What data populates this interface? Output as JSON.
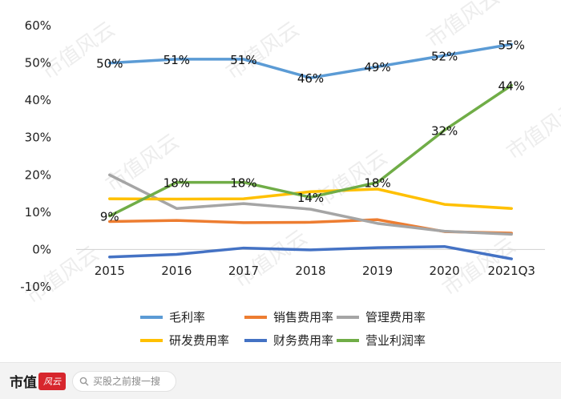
{
  "chart_data": {
    "type": "line",
    "categories": [
      "2015",
      "2016",
      "2017",
      "2018",
      "2019",
      "2020",
      "2021Q3"
    ],
    "ylim": [
      -10,
      60
    ],
    "yticks": [
      "60%",
      "50%",
      "40%",
      "30%",
      "20%",
      "10%",
      "0%",
      "-10%"
    ],
    "ytick_values": [
      60,
      50,
      40,
      30,
      20,
      10,
      0,
      -10
    ],
    "legend_position": "bottom",
    "series": [
      {
        "name": "毛利率",
        "color": "#5B9BD5",
        "values": [
          50,
          51,
          51,
          46,
          49,
          52,
          55
        ],
        "labels": [
          "50%",
          "51%",
          "51%",
          "46%",
          "49%",
          "52%",
          "55%"
        ]
      },
      {
        "name": "销售费用率",
        "color": "#ED7D31",
        "values": [
          7.5,
          7.8,
          7.2,
          7.3,
          8.0,
          4.8,
          4.4
        ],
        "labels": []
      },
      {
        "name": "管理费用率",
        "color": "#A5A5A5",
        "values": [
          20,
          11,
          12.3,
          10.8,
          7.0,
          4.9,
          4.1
        ],
        "labels": []
      },
      {
        "name": "研发费用率",
        "color": "#FFC000",
        "values": [
          13.6,
          13.5,
          13.6,
          15.5,
          16.2,
          12.1,
          11.0
        ],
        "labels": []
      },
      {
        "name": "财务费用率",
        "color": "#4472C4",
        "values": [
          -2.0,
          -1.3,
          0.4,
          -0.1,
          0.5,
          0.8,
          -2.5
        ],
        "labels": []
      },
      {
        "name": "营业利润率",
        "color": "#70AD47",
        "values": [
          9,
          18,
          18,
          14,
          18,
          32,
          44
        ],
        "labels": [
          "9%",
          "18%",
          "18%",
          "14%",
          "18%",
          "32%",
          "44%"
        ]
      }
    ]
  },
  "watermark": "市值风云",
  "footer": {
    "brand": "市值",
    "search_placeholder": "买股之前搜一搜"
  }
}
